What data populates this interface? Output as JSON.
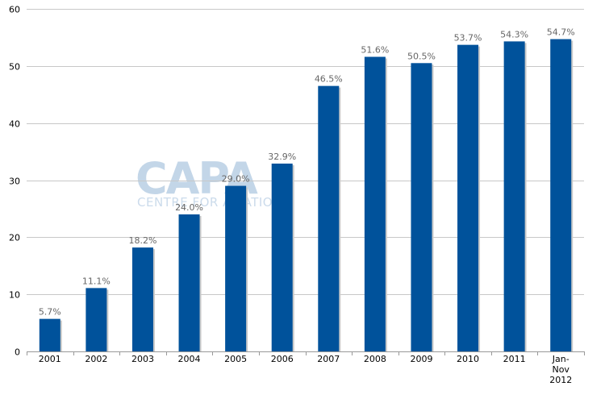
{
  "watermark": {
    "logo_text": "CAPA",
    "subtitle": "CENTRE FOR AVIATION"
  },
  "colors": {
    "bar": "#00529b",
    "bar_shadow": "#c9c9c9",
    "grid": "#c8c8c8",
    "axis": "#999999"
  },
  "chart_data": {
    "type": "bar",
    "categories": [
      [
        "2001"
      ],
      [
        "2002"
      ],
      [
        "2003"
      ],
      [
        "2004"
      ],
      [
        "2005"
      ],
      [
        "2006"
      ],
      [
        "2007"
      ],
      [
        "2008"
      ],
      [
        "2009"
      ],
      [
        "2010"
      ],
      [
        "2011"
      ],
      [
        "Jan-",
        "Nov",
        "2012"
      ]
    ],
    "values": [
      5.7,
      11.1,
      18.2,
      24.0,
      29.0,
      32.9,
      46.5,
      51.6,
      50.5,
      53.7,
      54.3,
      54.7
    ],
    "data_labels": [
      "5.7%",
      "11.1%",
      "18.2%",
      "24.0%",
      "29.0%",
      "32.9%",
      "46.5%",
      "51.6%",
      "50.5%",
      "53.7%",
      "54.3%",
      "54.7%"
    ],
    "y_ticks": [
      "0",
      "10",
      "20",
      "30",
      "40",
      "50",
      "60"
    ],
    "ylim": [
      0,
      60
    ],
    "grid": true,
    "legend": false
  }
}
